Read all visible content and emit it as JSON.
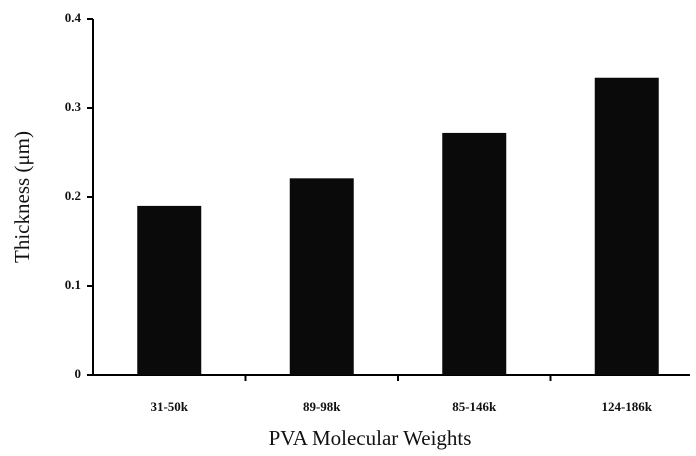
{
  "chart_data": {
    "type": "bar",
    "categories": [
      "31-50k",
      "89-98k",
      "85-146k",
      "124-186k"
    ],
    "values": [
      0.19,
      0.221,
      0.272,
      0.334
    ],
    "color": "#0a0a0a",
    "ylim": [
      0,
      0.4
    ],
    "yticks": [
      0,
      0.1,
      0.2,
      0.3,
      0.4
    ],
    "xlabel": "PVA Molecular Weights",
    "ylabel": "Thickness (μm)"
  }
}
